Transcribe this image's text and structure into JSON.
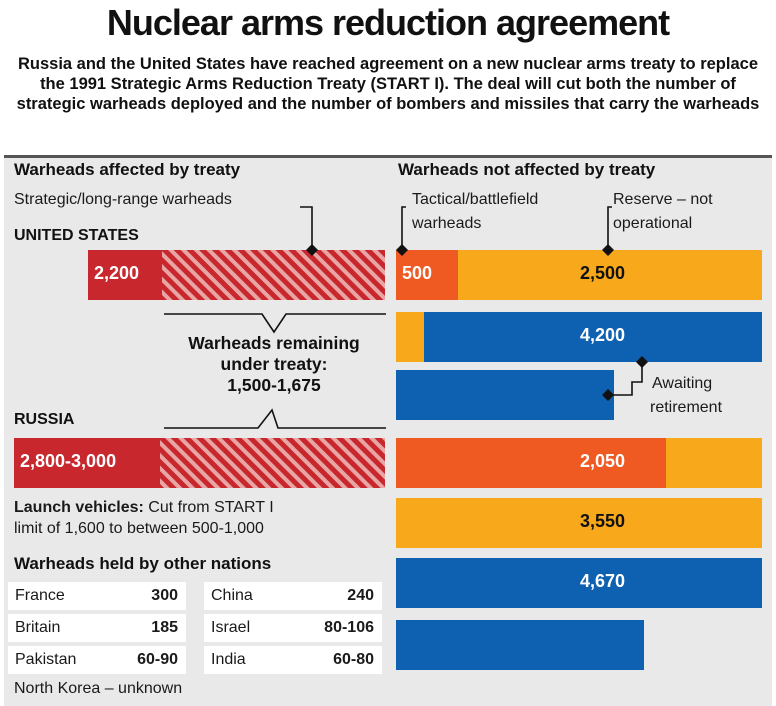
{
  "title": "Nuclear arms reduction agreement",
  "subtitle": "Russia and the United States have reached agreement on a new nuclear arms treaty to replace the 1991 Strategic Arms Reduction Treaty (START I). The deal will cut both the number of strategic warheads deployed and the number of bombers and missiles that carry the warheads",
  "left_header": "Warheads affected by treaty",
  "right_header": "Warheads not affected by treaty",
  "strategic_label": "Strategic/long-range warheads",
  "tactical_label_1": "Tactical/battlefield",
  "tactical_label_2": "warheads",
  "reserve_label_1": "Reserve – not",
  "reserve_label_2": "operational",
  "awaiting_label_1": "Awaiting",
  "awaiting_label_2": "retirement",
  "us_label": "UNITED STATES",
  "russia_label": "RUSSIA",
  "remaining_1": "Warheads remaining",
  "remaining_2": "under treaty:",
  "remaining_3": "1,500-1,675",
  "launch_bold": "Launch vehicles:",
  "launch_text_1": "Cut from START I",
  "launch_text_2": "limit of 1,600 to between 500-1,000",
  "others_title": "Warheads held by other nations",
  "others": [
    {
      "name": "France",
      "value": "300"
    },
    {
      "name": "China",
      "value": "240"
    },
    {
      "name": "Britain",
      "value": "185"
    },
    {
      "name": "Israel",
      "value": "80-106"
    },
    {
      "name": "Pakistan",
      "value": "60-90"
    },
    {
      "name": "India",
      "value": "60-80"
    }
  ],
  "north_korea": "North Korea – unknown",
  "colors": {
    "strategic_red": "#c8282d",
    "tactical_orange": "#ee5a22",
    "reserve_yellow": "#f7a81b",
    "awaiting_blue": "#0d61b0",
    "panel_grey": "#e9e9e9"
  },
  "chart_data": {
    "type": "bar",
    "categories": [
      "United States",
      "Russia"
    ],
    "series": [
      {
        "name": "Strategic/long-range warheads",
        "values": [
          "2,200",
          "2,800-3,000"
        ]
      },
      {
        "name": "Warheads remaining under treaty",
        "values": [
          "1,500-1,675",
          "1,500-1,675"
        ]
      },
      {
        "name": "Tactical/battlefield warheads",
        "values": [
          "500",
          "2,050"
        ]
      },
      {
        "name": "Reserve – not operational",
        "values": [
          "2,500",
          "3,550"
        ]
      },
      {
        "name": "Awaiting retirement",
        "values": [
          "4,200",
          "4,670"
        ]
      }
    ],
    "other_nations": {
      "France": "300",
      "China": "240",
      "Britain": "185",
      "Israel": "80-106",
      "Pakistan": "60-90",
      "India": "60-80",
      "North Korea": "unknown"
    }
  }
}
